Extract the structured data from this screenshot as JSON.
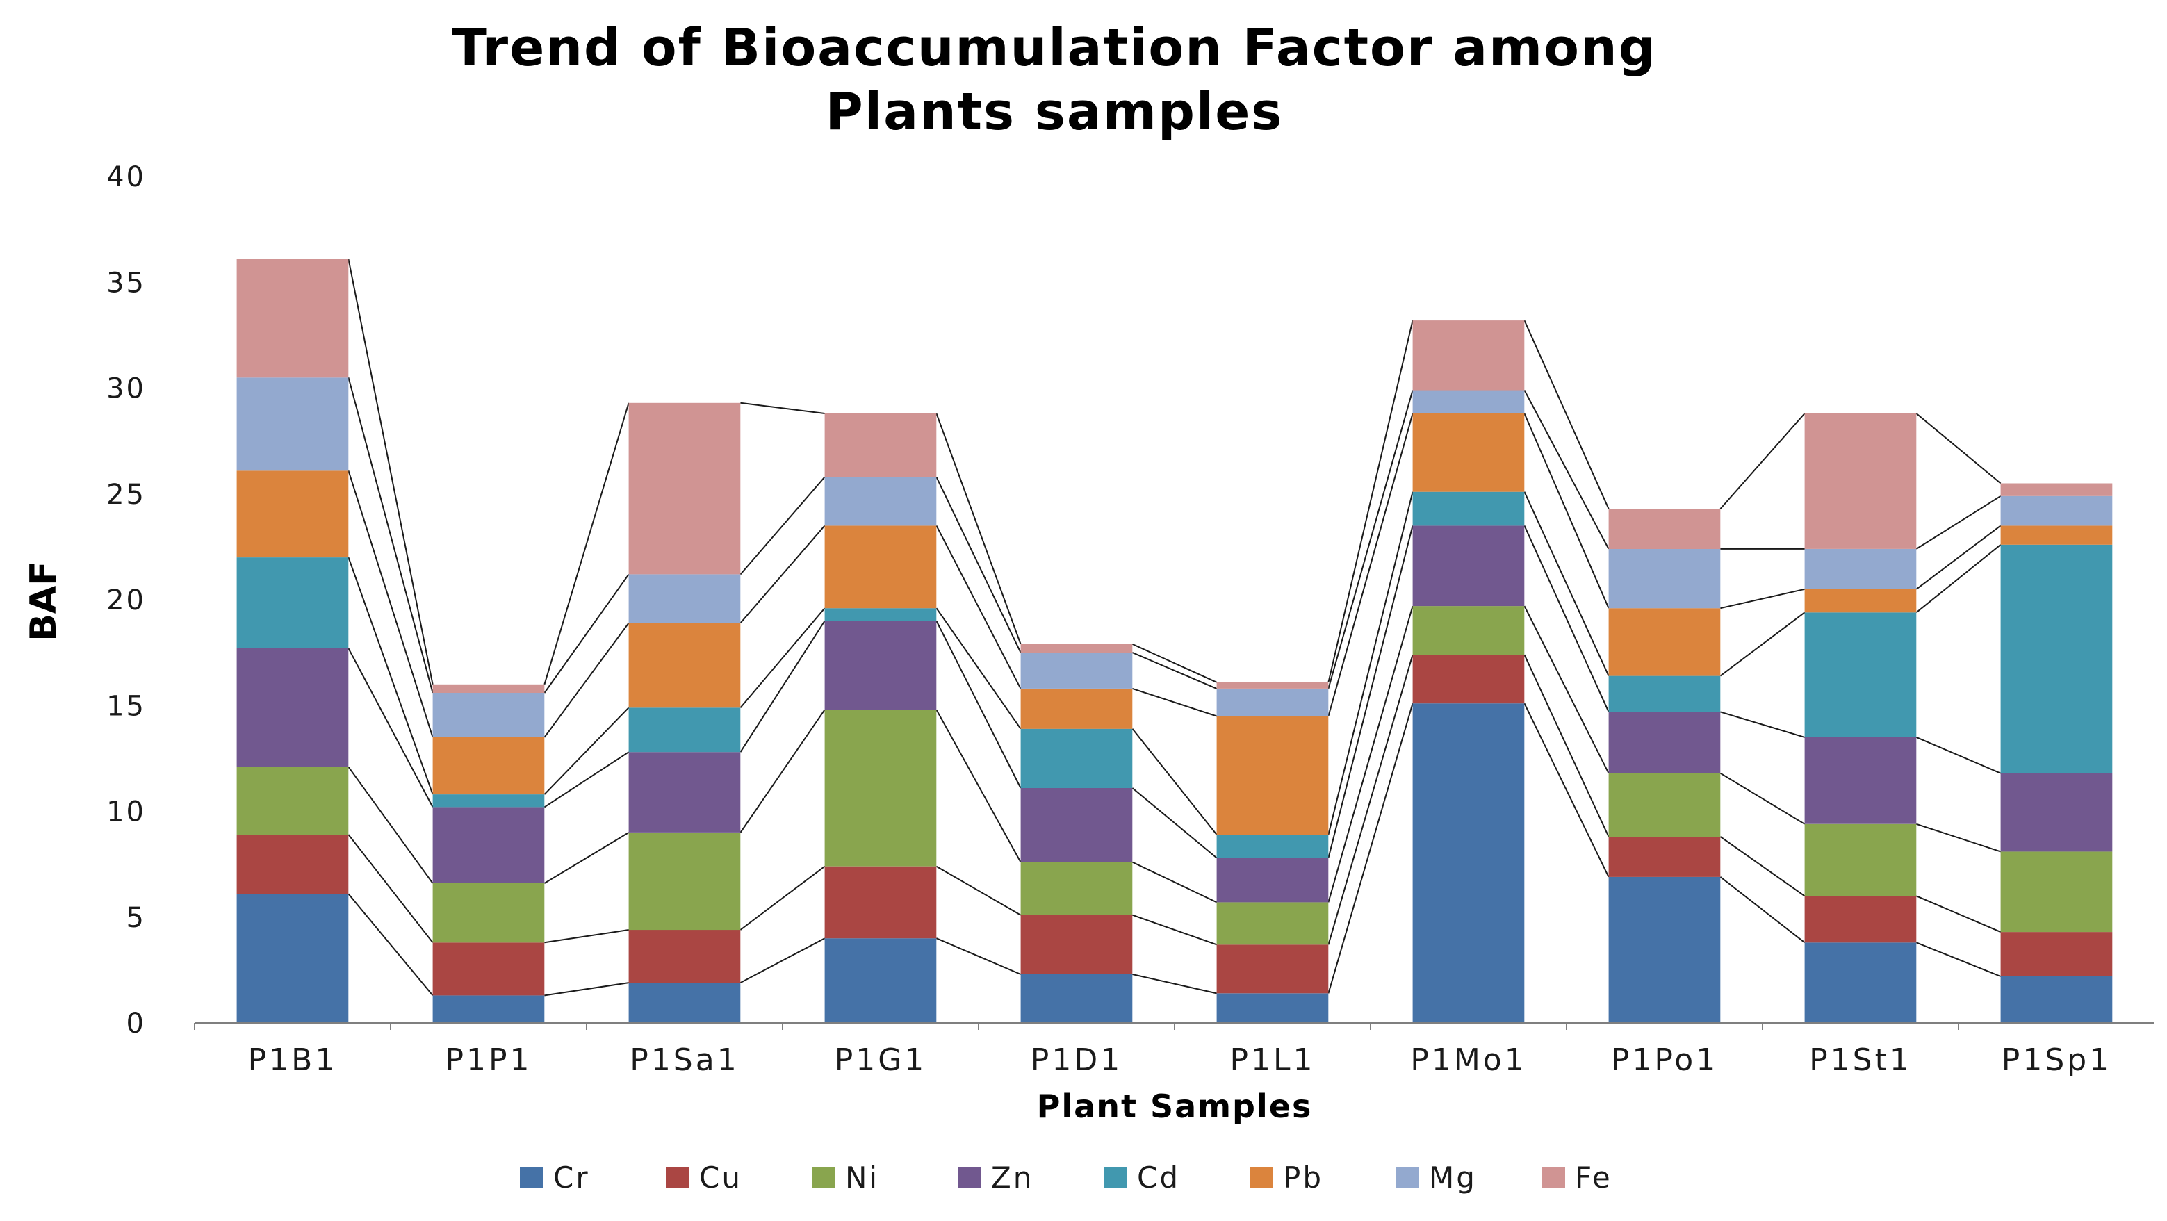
{
  "chart_data": {
    "type": "bar",
    "stacked": true,
    "title_lines": [
      "Trend of Bioaccumulation Factor among",
      "Plants samples"
    ],
    "xlabel": "Plant Samples",
    "ylabel": "BAF",
    "ylim": [
      0,
      40
    ],
    "yticks": [
      0,
      5,
      10,
      15,
      20,
      25,
      30,
      35,
      40
    ],
    "grid": false,
    "legend_position": "bottom",
    "connector_lines": true,
    "categories": [
      "P1B1",
      "P1P1",
      "P1Sa1",
      "P1G1",
      "P1D1",
      "P1L1",
      "P1Mo1",
      "P1Po1",
      "P1St1",
      "P1Sp1"
    ],
    "series": [
      {
        "name": "Cr",
        "color": "#4572A7",
        "values": [
          6.1,
          1.3,
          1.9,
          4.0,
          2.3,
          1.4,
          15.1,
          6.9,
          3.8,
          2.2
        ]
      },
      {
        "name": "Cu",
        "color": "#AA4643",
        "values": [
          2.8,
          2.5,
          2.5,
          3.4,
          2.8,
          2.3,
          2.3,
          1.9,
          2.2,
          2.1
        ]
      },
      {
        "name": "Ni",
        "color": "#89A54E",
        "values": [
          3.2,
          2.8,
          4.6,
          7.4,
          2.5,
          2.0,
          2.3,
          3.0,
          3.4,
          3.8
        ]
      },
      {
        "name": "Zn",
        "color": "#71588F",
        "values": [
          5.6,
          3.6,
          3.8,
          4.2,
          3.5,
          2.1,
          3.8,
          2.9,
          4.1,
          3.7
        ]
      },
      {
        "name": "Cd",
        "color": "#4198AF",
        "values": [
          4.3,
          0.6,
          2.1,
          0.6,
          2.8,
          1.1,
          1.6,
          1.7,
          5.9,
          10.8
        ]
      },
      {
        "name": "Pb",
        "color": "#DB843D",
        "values": [
          4.1,
          2.7,
          4.0,
          3.9,
          1.9,
          5.6,
          3.7,
          3.2,
          1.1,
          0.9
        ]
      },
      {
        "name": "Mg",
        "color": "#93A9CF",
        "values": [
          4.4,
          2.1,
          2.3,
          2.3,
          1.7,
          1.3,
          1.1,
          2.8,
          1.9,
          1.4
        ]
      },
      {
        "name": "Fe",
        "color": "#D09493",
        "values": [
          5.6,
          0.4,
          8.1,
          3.0,
          0.4,
          0.3,
          3.3,
          1.9,
          6.4,
          0.6
        ]
      }
    ]
  }
}
